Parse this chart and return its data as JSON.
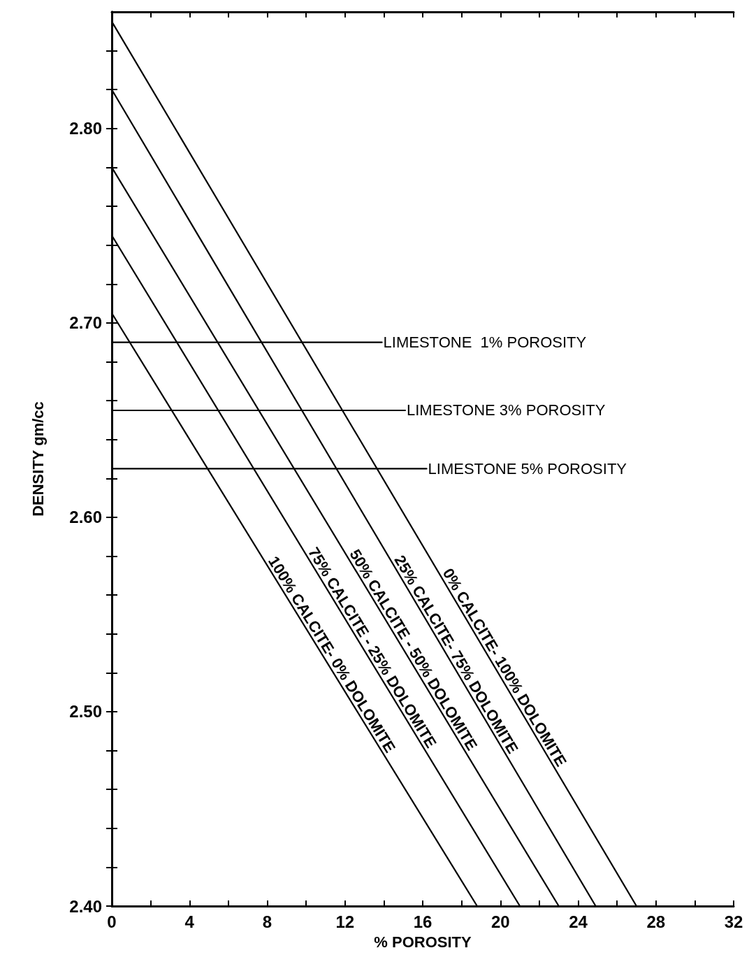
{
  "chart_data": {
    "type": "line",
    "xlabel": "% POROSITY",
    "ylabel": "DENSITY gm/cc",
    "xlim": [
      0,
      32
    ],
    "ylim": [
      2.4,
      2.86
    ],
    "xticks": [
      0,
      {
        "value": 2,
        "label": null
      },
      4,
      {
        "value": 6,
        "label": null
      },
      8,
      {
        "value": 10,
        "label": null
      },
      12,
      {
        "value": 14,
        "label": null
      },
      16,
      {
        "value": 18,
        "label": null
      },
      20,
      {
        "value": 22,
        "label": null
      },
      24,
      {
        "value": 26,
        "label": null
      },
      28,
      {
        "value": 30,
        "label": null
      },
      32
    ],
    "yticks": [
      {
        "value": 2.4,
        "label": "2.40"
      },
      {
        "value": 2.42,
        "label": null
      },
      {
        "value": 2.44,
        "label": null
      },
      {
        "value": 2.46,
        "label": null
      },
      {
        "value": 2.48,
        "label": null
      },
      {
        "value": 2.5,
        "label": "2.50"
      },
      {
        "value": 2.52,
        "label": null
      },
      {
        "value": 2.54,
        "label": null
      },
      {
        "value": 2.56,
        "label": null
      },
      {
        "value": 2.58,
        "label": null
      },
      {
        "value": 2.6,
        "label": "2.60"
      },
      {
        "value": 2.62,
        "label": null
      },
      {
        "value": 2.64,
        "label": null
      },
      {
        "value": 2.66,
        "label": null
      },
      {
        "value": 2.68,
        "label": null
      },
      {
        "value": 2.7,
        "label": "2.70"
      },
      {
        "value": 2.72,
        "label": null
      },
      {
        "value": 2.74,
        "label": null
      },
      {
        "value": 2.76,
        "label": null
      },
      {
        "value": 2.78,
        "label": null
      },
      {
        "value": 2.8,
        "label": "2.80"
      },
      {
        "value": 2.82,
        "label": null
      },
      {
        "value": 2.84,
        "label": null
      }
    ],
    "grid": false,
    "legend": false,
    "marker": "none",
    "line_style": "solid",
    "series": [
      {
        "name": "0% CALCITE- 100% DOLOMITE",
        "color": "#000000",
        "x": [
          0,
          27.0
        ],
        "values": [
          2.855,
          2.4
        ]
      },
      {
        "name": "25% CALCITE- 75% DOLOMITE",
        "color": "#000000",
        "x": [
          0,
          24.9
        ],
        "values": [
          2.82,
          2.4
        ]
      },
      {
        "name": "50% CALCITE - 50% DOLOMITE",
        "color": "#000000",
        "x": [
          0,
          23.0
        ],
        "values": [
          2.78,
          2.4
        ]
      },
      {
        "name": "75% CALCITE - 25% DOLOMITE",
        "color": "#000000",
        "x": [
          0,
          21.0
        ],
        "values": [
          2.745,
          2.4
        ]
      },
      {
        "name": "100% CALCITE- 0% DOLOMITE",
        "color": "#000000",
        "x": [
          0,
          18.8
        ],
        "values": [
          2.705,
          2.4
        ]
      },
      {
        "name": "LIMESTONE  1% POROSITY",
        "color": "#000000",
        "x": [
          0,
          13.9
        ],
        "values": [
          2.69,
          2.69
        ]
      },
      {
        "name": "LIMESTONE 3% POROSITY",
        "color": "#000000",
        "x": [
          0,
          15.1
        ],
        "values": [
          2.655,
          2.655
        ]
      },
      {
        "name": "LIMESTONE 5% POROSITY",
        "color": "#000000",
        "x": [
          0,
          16.2
        ],
        "values": [
          2.625,
          2.625
        ]
      }
    ]
  }
}
